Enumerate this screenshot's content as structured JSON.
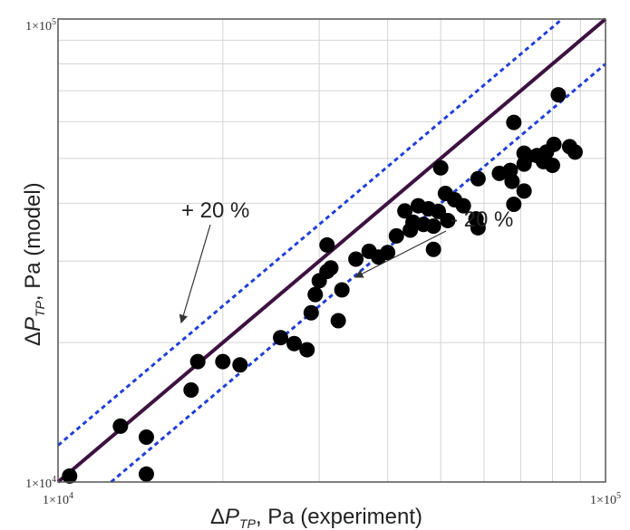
{
  "chart_data": {
    "type": "scatter",
    "title": "",
    "xlabel": {
      "delta": "Δ",
      "main": "P",
      "sub": "TP",
      "rest": ", Pa (experiment)"
    },
    "ylabel": {
      "delta": "Δ",
      "main": "P",
      "sub": "TP",
      "rest": ", Pa (model)"
    },
    "x_scale": "log",
    "y_scale": "log",
    "xlim": [
      10000,
      100000
    ],
    "ylim": [
      10000,
      100000
    ],
    "grid": true,
    "x_ticks": [
      {
        "mant": "1×10",
        "exp": "4"
      },
      {
        "mant": "1×10",
        "exp": "5"
      }
    ],
    "y_ticks": [
      {
        "mant": "1×10",
        "exp": "4"
      },
      {
        "mant": "1×10",
        "exp": "5"
      }
    ],
    "lines": [
      {
        "type": "y=x",
        "style": "solid",
        "color": "#3d1240"
      },
      {
        "type": "band",
        "factor": 1.2,
        "style": "dashed",
        "color": "#1f3fd8"
      },
      {
        "type": "band",
        "factor": 0.8,
        "style": "dashed",
        "color": "#1f3fd8"
      }
    ],
    "annotations": [
      {
        "text": "+ 20 %"
      },
      {
        "text": "- 20 %"
      }
    ],
    "point_color": "#000000",
    "points": [
      [
        10500,
        10300
      ],
      [
        13000,
        13200
      ],
      [
        14500,
        10400
      ],
      [
        14500,
        12500
      ],
      [
        17500,
        15800
      ],
      [
        18000,
        18200
      ],
      [
        20000,
        18200
      ],
      [
        21500,
        17900
      ],
      [
        25500,
        20500
      ],
      [
        27000,
        19900
      ],
      [
        28500,
        19300
      ],
      [
        29000,
        23200
      ],
      [
        29500,
        25400
      ],
      [
        30000,
        27200
      ],
      [
        31000,
        28500
      ],
      [
        31000,
        32500
      ],
      [
        31500,
        29000
      ],
      [
        32500,
        22300
      ],
      [
        33000,
        26000
      ],
      [
        35000,
        30300
      ],
      [
        37000,
        31500
      ],
      [
        38500,
        30600
      ],
      [
        40000,
        31300
      ],
      [
        41500,
        34000
      ],
      [
        43000,
        38500
      ],
      [
        44000,
        35000
      ],
      [
        44500,
        36400
      ],
      [
        45500,
        39500
      ],
      [
        46500,
        36000
      ],
      [
        47500,
        38900
      ],
      [
        48500,
        31800
      ],
      [
        48500,
        35700
      ],
      [
        50000,
        47700
      ],
      [
        49500,
        38400
      ],
      [
        51000,
        42000
      ],
      [
        51500,
        36700
      ],
      [
        53000,
        40700
      ],
      [
        55000,
        39500
      ],
      [
        58000,
        37000
      ],
      [
        58500,
        45200
      ],
      [
        58500,
        35400
      ],
      [
        64000,
        46400
      ],
      [
        67000,
        47100
      ],
      [
        67500,
        44600
      ],
      [
        68000,
        39800
      ],
      [
        68000,
        59800
      ],
      [
        71000,
        42500
      ],
      [
        71000,
        51300
      ],
      [
        71000,
        48600
      ],
      [
        72000,
        50500
      ],
      [
        75000,
        50700
      ],
      [
        77000,
        49200
      ],
      [
        78000,
        51600
      ],
      [
        80000,
        48300
      ],
      [
        80500,
        53600
      ],
      [
        82000,
        68600
      ],
      [
        86000,
        53000
      ],
      [
        88000,
        51600
      ]
    ]
  }
}
